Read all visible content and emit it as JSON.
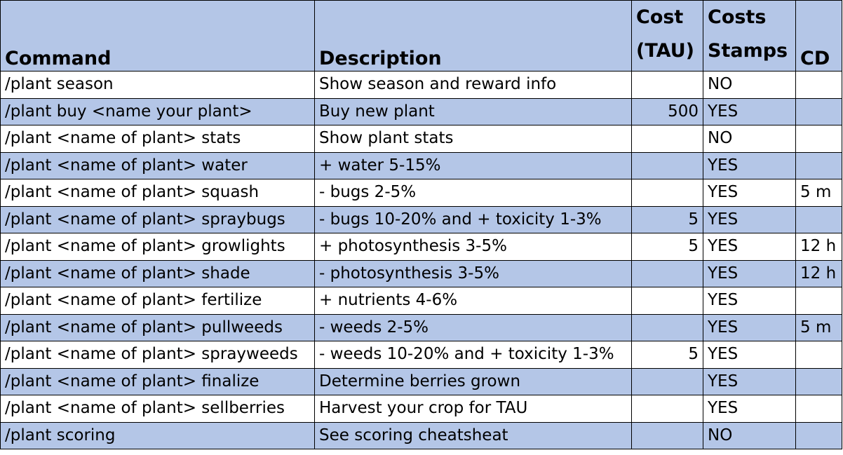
{
  "headers": {
    "command": "Command",
    "description": "Description",
    "cost_line1": "Cost",
    "cost_line2": "(TAU)",
    "stamps_line1": "Costs",
    "stamps_line2": "Stamps",
    "cd": "CD"
  },
  "rows": [
    {
      "command": "/plant season",
      "description": "Show season and reward info",
      "cost": "",
      "stamps": "NO",
      "cd": ""
    },
    {
      "command": "/plant buy <name your plant>",
      "description": "Buy new plant",
      "cost": "500",
      "stamps": "YES",
      "cd": ""
    },
    {
      "command": "/plant <name of plant> stats",
      "description": "Show plant stats",
      "cost": "",
      "stamps": "NO",
      "cd": ""
    },
    {
      "command": "/plant <name of plant> water",
      "description": "+ water 5-15%",
      "cost": "",
      "stamps": "YES",
      "cd": ""
    },
    {
      "command": "/plant <name of plant> squash",
      "description": "- bugs 2-5%",
      "cost": "",
      "stamps": "YES",
      "cd": "5 m"
    },
    {
      "command": "/plant <name of plant> spraybugs",
      "description": "- bugs 10-20% and + toxicity 1-3%",
      "cost": "5",
      "stamps": "YES",
      "cd": ""
    },
    {
      "command": "/plant <name of plant> growlights",
      "description": "+ photosynthesis 3-5%",
      "cost": "5",
      "stamps": "YES",
      "cd": "12 h"
    },
    {
      "command": "/plant <name of plant> shade",
      "description": "- photosynthesis 3-5%",
      "cost": "",
      "stamps": "YES",
      "cd": "12 h"
    },
    {
      "command": "/plant <name of plant> fertilize",
      "description": "+  nutrients 4-6%",
      "cost": "",
      "stamps": "YES",
      "cd": ""
    },
    {
      "command": "/plant <name of plant> pullweeds",
      "description": "- weeds 2-5%",
      "cost": "",
      "stamps": "YES",
      "cd": "5 m"
    },
    {
      "command": "/plant <name of plant> sprayweeds",
      "description": "- weeds 10-20% and + toxicity 1-3%",
      "cost": "5",
      "stamps": "YES",
      "cd": ""
    },
    {
      "command": "/plant <name of plant> finalize",
      "description": "Determine berries grown",
      "cost": "",
      "stamps": "YES",
      "cd": ""
    },
    {
      "command": "/plant <name of plant> sellberries",
      "description": "Harvest your crop for TAU",
      "cost": "",
      "stamps": "YES",
      "cd": ""
    },
    {
      "command": "/plant scoring",
      "description": "See scoring cheatsheat",
      "cost": "",
      "stamps": "NO",
      "cd": ""
    }
  ],
  "colors": {
    "header_bg": "#b4c6e7",
    "band_bg": "#b4c6e7",
    "plain_bg": "#ffffff",
    "border": "#000000"
  }
}
